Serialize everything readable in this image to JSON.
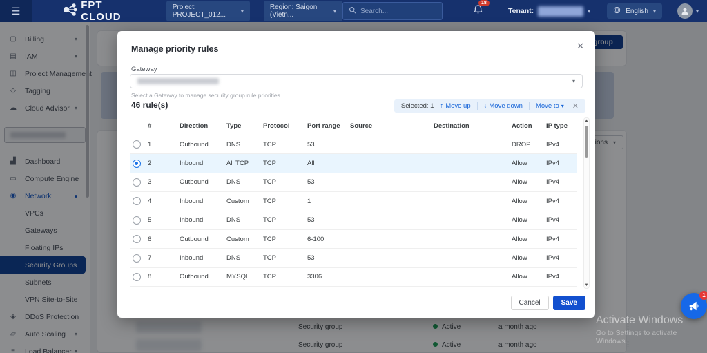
{
  "navbar": {
    "logo": "FPT CLOUD",
    "project": "Project: PROJECT_012...",
    "region": "Region: Saigon (Vietn...",
    "search_placeholder": "Search...",
    "notification_count": "18",
    "tenant_label": "Tenant:",
    "language": "English"
  },
  "sidebar": {
    "top_items": [
      {
        "label": "Billing",
        "icon": "billing-icon",
        "glyph": "▢",
        "chevron": "down"
      },
      {
        "label": "IAM",
        "icon": "iam-icon",
        "glyph": "▤",
        "chevron": "down"
      },
      {
        "label": "Project Management",
        "icon": "project-management-icon",
        "glyph": "◫"
      },
      {
        "label": "Tagging",
        "icon": "tagging-icon",
        "glyph": "◇"
      },
      {
        "label": "Cloud Advisor",
        "icon": "cloud-advisor-icon",
        "glyph": "☁",
        "chevron": "down"
      }
    ],
    "main_items": [
      {
        "label": "Dashboard",
        "icon": "dashboard-icon",
        "glyph": "▟"
      },
      {
        "label": "Compute Engine",
        "icon": "compute-engine-icon",
        "glyph": "▭",
        "chevron": "down"
      },
      {
        "label": "Network",
        "icon": "network-icon",
        "glyph": "◉",
        "chevron": "up",
        "section_active": true
      },
      {
        "label": "VPCs",
        "sub": true
      },
      {
        "label": "Gateways",
        "sub": true
      },
      {
        "label": "Floating IPs",
        "sub": true
      },
      {
        "label": "Security Groups",
        "sub": true,
        "active": true
      },
      {
        "label": "Subnets",
        "sub": true
      },
      {
        "label": "VPN Site-to-Site",
        "sub": true
      },
      {
        "label": "DDoS Protection",
        "icon": "ddos-protection-icon",
        "glyph": "◈"
      },
      {
        "label": "Auto Scaling",
        "icon": "auto-scaling-icon",
        "glyph": "▱",
        "chevron": "down"
      },
      {
        "label": "Load Balancer",
        "icon": "load-balancer-icon",
        "glyph": "≡",
        "chevron": "down"
      }
    ]
  },
  "modal": {
    "title": "Manage priority rules",
    "gateway_label": "Gateway",
    "gateway_helper": "Select a Gateway to manage security group rule priorities.",
    "rules_count": "46 rule(s)",
    "toolbar": {
      "selected": "Selected: 1",
      "move_up": "Move up",
      "move_down": "Move down",
      "move_to": "Move to"
    },
    "table": {
      "columns": [
        "#",
        "Direction",
        "Type",
        "Protocol",
        "Port range",
        "Source",
        "Destination",
        "Action",
        "IP type"
      ],
      "rows": [
        {
          "num": "1",
          "direction": "Outbound",
          "type": "DNS",
          "protocol": "TCP",
          "port": "53",
          "action": "DROP",
          "ip": "IPv4",
          "selected": false,
          "source_blur": "lg",
          "dest_blur": "sm"
        },
        {
          "num": "2",
          "direction": "Inbound",
          "type": "All TCP",
          "protocol": "TCP",
          "port": "All",
          "action": "Allow",
          "ip": "IPv4",
          "selected": true,
          "source_blur": "sm",
          "dest_blur": "lg"
        },
        {
          "num": "3",
          "direction": "Outbound",
          "type": "DNS",
          "protocol": "TCP",
          "port": "53",
          "action": "Allow",
          "ip": "IPv4",
          "selected": false,
          "source_blur": "lg",
          "dest_blur": "sm"
        },
        {
          "num": "4",
          "direction": "Inbound",
          "type": "Custom",
          "protocol": "TCP",
          "port": "1",
          "action": "Allow",
          "ip": "IPv4",
          "selected": false,
          "source_blur": "sm",
          "dest_blur": "lg"
        },
        {
          "num": "5",
          "direction": "Inbound",
          "type": "DNS",
          "protocol": "TCP",
          "port": "53",
          "action": "Allow",
          "ip": "IPv4",
          "selected": false,
          "source_blur": "sm",
          "dest_blur": "md"
        },
        {
          "num": "6",
          "direction": "Outbound",
          "type": "Custom",
          "protocol": "TCP",
          "port": "6-100",
          "action": "Allow",
          "ip": "IPv4",
          "selected": false,
          "source_blur": "md",
          "dest_blur": "sm"
        },
        {
          "num": "7",
          "direction": "Inbound",
          "type": "DNS",
          "protocol": "TCP",
          "port": "53",
          "action": "Allow",
          "ip": "IPv4",
          "selected": false,
          "source_blur": "sm",
          "dest_blur": "md"
        },
        {
          "num": "8",
          "direction": "Outbound",
          "type": "MYSQL",
          "protocol": "TCP",
          "port": "3306",
          "action": "Allow",
          "ip": "IPv4",
          "selected": false,
          "source_blur": "md",
          "dest_blur": "sm"
        }
      ]
    },
    "footer": {
      "cancel": "Cancel",
      "save": "Save"
    }
  },
  "background": {
    "create_button": "Create security group",
    "actions_button": "Actions",
    "rows": [
      {
        "type": "Security group",
        "status": "Active",
        "updated": "a month ago"
      },
      {
        "type": "Security group",
        "status": "Active",
        "updated": "a month ago"
      }
    ],
    "watermark_line1": "Activate Windows",
    "watermark_line2": "Go to Settings to activate Windows.",
    "fab_badge": "1"
  },
  "colors": {
    "navbar": "#16316d",
    "accent_blue": "#1250cf",
    "link_blue": "#1765d8",
    "selected_row": "#e9f5fe",
    "active_sidebar": "#0a3e92",
    "status_green": "#179c52",
    "badge_red": "#cf3a2c"
  }
}
